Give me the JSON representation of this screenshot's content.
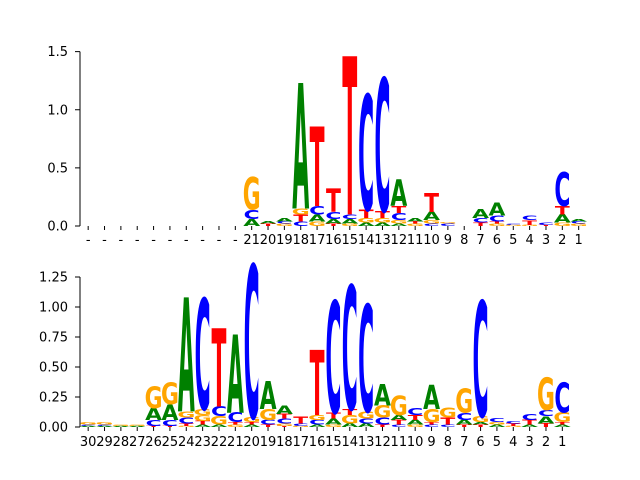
{
  "colors": {
    "A": "#008000",
    "C": "#0000ff",
    "G": "#ffa500",
    "T": "#ff0000",
    "axis": "#000000"
  },
  "chart_data": [
    {
      "type": "sequence-logo",
      "title": "",
      "xlabel": "",
      "ylabel": "",
      "ylim": [
        0,
        1.6
      ],
      "yticks": [
        "0.0",
        "0.5",
        "1.0",
        "1.5"
      ],
      "ytick_values": [
        0,
        0.5,
        1.0,
        1.5
      ],
      "xtick_labels": [
        "-",
        "-",
        "-",
        "-",
        "-",
        "-",
        "-",
        "-",
        "-",
        "-",
        "21",
        "20",
        "19",
        "18",
        "17",
        "16",
        "15",
        "14",
        "13",
        "12",
        "11",
        "10",
        "9",
        "8",
        "7",
        "6",
        "5",
        "4",
        "3",
        "2",
        "1"
      ],
      "positions": [
        [],
        [],
        [],
        [],
        [],
        [],
        [],
        [],
        [],
        [],
        [
          [
            "A",
            0.06
          ],
          [
            "C",
            0.08
          ],
          [
            "G",
            0.28
          ]
        ],
        [
          [
            "T",
            0.02
          ],
          [
            "A",
            0.02
          ]
        ],
        [
          [
            "G",
            0.02
          ],
          [
            "C",
            0.02
          ],
          [
            "A",
            0.03
          ]
        ],
        [
          [
            "C",
            0.04
          ],
          [
            "T",
            0.06
          ],
          [
            "G",
            0.05
          ],
          [
            "A",
            1.08
          ]
        ],
        [
          [
            "G",
            0.04
          ],
          [
            "A",
            0.06
          ],
          [
            "C",
            0.07
          ],
          [
            "T",
            0.68
          ]
        ],
        [
          [
            "T",
            0.02
          ],
          [
            "A",
            0.04
          ],
          [
            "C",
            0.06
          ],
          [
            "T",
            0.2
          ]
        ],
        [
          [
            "G",
            0.02
          ],
          [
            "A",
            0.04
          ],
          [
            "C",
            0.04
          ],
          [
            "T",
            1.36
          ]
        ],
        [
          [
            "A",
            0.03
          ],
          [
            "G",
            0.04
          ],
          [
            "T",
            0.07
          ],
          [
            "C",
            0.99
          ]
        ],
        [
          [
            "A",
            0.03
          ],
          [
            "G",
            0.04
          ],
          [
            "T",
            0.06
          ],
          [
            "C",
            1.14
          ]
        ],
        [
          [
            "A",
            0.02
          ],
          [
            "G",
            0.03
          ],
          [
            "C",
            0.06
          ],
          [
            "T",
            0.06
          ],
          [
            "A",
            0.23
          ]
        ],
        [
          [
            "G",
            0.02
          ],
          [
            "T",
            0.02
          ],
          [
            "A",
            0.03
          ]
        ],
        [
          [
            "C",
            0.02
          ],
          [
            "G",
            0.03
          ],
          [
            "A",
            0.07
          ],
          [
            "T",
            0.16
          ]
        ],
        [
          [
            "C",
            0.02
          ],
          [
            "G",
            0.01
          ]
        ],
        [],
        [
          [
            "T",
            0.03
          ],
          [
            "C",
            0.04
          ],
          [
            "A",
            0.08
          ]
        ],
        [
          [
            "G",
            0.02
          ],
          [
            "T",
            0.02
          ],
          [
            "C",
            0.05
          ],
          [
            "A",
            0.11
          ]
        ],
        [
          [
            "G",
            0.01
          ],
          [
            "C",
            0.01
          ]
        ],
        [
          [
            "G",
            0.01
          ],
          [
            "T",
            0.04
          ],
          [
            "C",
            0.04
          ]
        ],
        [
          [
            "T",
            0.01
          ],
          [
            "C",
            0.02
          ]
        ],
        [
          [
            "G",
            0.03
          ],
          [
            "A",
            0.07
          ],
          [
            "T",
            0.07
          ],
          [
            "C",
            0.29
          ]
        ],
        [
          [
            "G",
            0.02
          ],
          [
            "C",
            0.02
          ],
          [
            "A",
            0.02
          ]
        ]
      ]
    },
    {
      "type": "sequence-logo",
      "title": "",
      "xlabel": "",
      "ylabel": "",
      "ylim": [
        0,
        1.4
      ],
      "yticks": [
        "0.00",
        "0.25",
        "0.50",
        "0.75",
        "1.00",
        "1.25"
      ],
      "ytick_values": [
        0,
        0.25,
        0.5,
        0.75,
        1.0,
        1.25
      ],
      "xtick_labels": [
        "30",
        "29",
        "28",
        "27",
        "26",
        "25",
        "24",
        "23",
        "22",
        "21",
        "20",
        "19",
        "18",
        "17",
        "16",
        "15",
        "14",
        "13",
        "12",
        "11",
        "10",
        "9",
        "8",
        "7",
        "6",
        "5",
        "4",
        "3",
        "2",
        "1"
      ],
      "positions": [
        [
          [
            "A",
            0.01
          ],
          [
            "C",
            0.01
          ],
          [
            "G",
            0.02
          ]
        ],
        [
          [
            "A",
            0.01
          ],
          [
            "C",
            0.01
          ],
          [
            "G",
            0.02
          ]
        ],
        [
          [
            "A",
            0.01
          ],
          [
            "G",
            0.01
          ]
        ],
        [
          [
            "A",
            0.01
          ],
          [
            "G",
            0.01
          ]
        ],
        [
          [
            "T",
            0.01
          ],
          [
            "C",
            0.05
          ],
          [
            "A",
            0.1
          ],
          [
            "G",
            0.18
          ]
        ],
        [
          [
            "T",
            0.01
          ],
          [
            "C",
            0.05
          ],
          [
            "A",
            0.13
          ],
          [
            "G",
            0.18
          ]
        ],
        [
          [
            "G",
            0.01
          ],
          [
            "T",
            0.02
          ],
          [
            "C",
            0.05
          ],
          [
            "G",
            0.05
          ],
          [
            "A",
            0.95
          ]
        ],
        [
          [
            "A",
            0.02
          ],
          [
            "T",
            0.03
          ],
          [
            "G",
            0.05
          ],
          [
            "G",
            0.05
          ],
          [
            "C",
            0.92
          ]
        ],
        [
          [
            "A",
            0.02
          ],
          [
            "G",
            0.07
          ],
          [
            "C",
            0.08
          ],
          [
            "T",
            0.65
          ]
        ],
        [
          [
            "G",
            0.02
          ],
          [
            "T",
            0.02
          ],
          [
            "C",
            0.08
          ],
          [
            "A",
            0.65
          ]
        ],
        [
          [
            "A",
            0.02
          ],
          [
            "T",
            0.02
          ],
          [
            "G",
            0.04
          ],
          [
            "C",
            1.27
          ]
        ],
        [
          [
            "T",
            0.02
          ],
          [
            "C",
            0.04
          ],
          [
            "G",
            0.09
          ],
          [
            "A",
            0.23
          ]
        ],
        [
          [
            "T",
            0.01
          ],
          [
            "G",
            0.02
          ],
          [
            "C",
            0.04
          ],
          [
            "T",
            0.04
          ],
          [
            "A",
            0.07
          ]
        ],
        [
          [
            "G",
            0.01
          ],
          [
            "C",
            0.02
          ],
          [
            "T",
            0.06
          ]
        ],
        [
          [
            "A",
            0.02
          ],
          [
            "C",
            0.04
          ],
          [
            "G",
            0.04
          ],
          [
            "T",
            0.54
          ]
        ],
        [
          [
            "G",
            0.02
          ],
          [
            "A",
            0.05
          ],
          [
            "T",
            0.05
          ],
          [
            "C",
            0.93
          ]
        ],
        [
          [
            "A",
            0.03
          ],
          [
            "G",
            0.07
          ],
          [
            "T",
            0.05
          ],
          [
            "C",
            1.03
          ]
        ],
        [
          [
            "A",
            0.03
          ],
          [
            "C",
            0.04
          ],
          [
            "G",
            0.06
          ],
          [
            "C",
            0.89
          ]
        ],
        [
          [
            "T",
            0.02
          ],
          [
            "C",
            0.06
          ],
          [
            "G",
            0.1
          ],
          [
            "A",
            0.18
          ]
        ],
        [
          [
            "C",
            0.02
          ],
          [
            "T",
            0.04
          ],
          [
            "A",
            0.04
          ],
          [
            "G",
            0.16
          ]
        ],
        [
          [
            "G",
            0.02
          ],
          [
            "A",
            0.04
          ],
          [
            "T",
            0.04
          ],
          [
            "C",
            0.06
          ]
        ],
        [
          [
            "C",
            0.02
          ],
          [
            "T",
            0.02
          ],
          [
            "G",
            0.11
          ],
          [
            "A",
            0.2
          ]
        ],
        [
          [
            "C",
            0.02
          ],
          [
            "T",
            0.06
          ],
          [
            "G",
            0.08
          ]
        ],
        [
          [
            "T",
            0.02
          ],
          [
            "A",
            0.04
          ],
          [
            "C",
            0.06
          ],
          [
            "G",
            0.2
          ]
        ],
        [
          [
            "T",
            0.02
          ],
          [
            "A",
            0.02
          ],
          [
            "G",
            0.05
          ],
          [
            "C",
            0.96
          ]
        ],
        [
          [
            "A",
            0.02
          ],
          [
            "G",
            0.02
          ],
          [
            "C",
            0.03
          ]
        ],
        [
          [
            "G",
            0.01
          ],
          [
            "T",
            0.02
          ],
          [
            "C",
            0.02
          ]
        ],
        [
          [
            "A",
            0.02
          ],
          [
            "T",
            0.04
          ],
          [
            "C",
            0.05
          ]
        ],
        [
          [
            "T",
            0.03
          ],
          [
            "A",
            0.06
          ],
          [
            "C",
            0.05
          ],
          [
            "G",
            0.27
          ]
        ],
        [
          [
            "A",
            0.02
          ],
          [
            "T",
            0.02
          ],
          [
            "G",
            0.08
          ],
          [
            "C",
            0.25
          ]
        ]
      ]
    }
  ]
}
